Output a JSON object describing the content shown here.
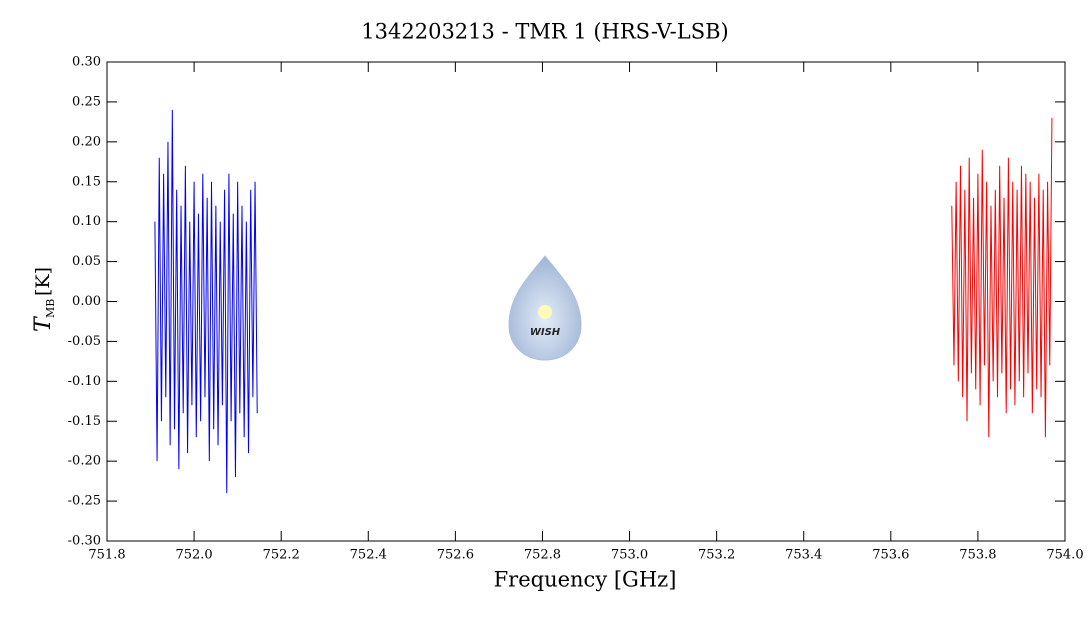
{
  "chart_data": {
    "type": "line",
    "title": "1342203213 - TMR 1 (HRS-V-LSB)",
    "x_label": "Frequency [GHz]",
    "y_label": {
      "main": "T",
      "sub": "MB",
      "unit": "[K]"
    },
    "watermark": "WISH",
    "xlim": [
      751.8,
      754.0
    ],
    "ylim": [
      -0.3,
      0.3
    ],
    "xticks": [
      751.8,
      {
        "value": 752,
        "label": "752.0"
      },
      752.2,
      752.4,
      752.6,
      752.8,
      {
        "value": 753,
        "label": "753.0"
      },
      753.2,
      753.4,
      753.6,
      753.8,
      {
        "value": 754,
        "label": "754.0"
      }
    ],
    "yticks": [
      {
        "value": -0.3,
        "label": "-0.30"
      },
      -0.25,
      {
        "value": -0.2,
        "label": "-0.20"
      },
      -0.15,
      {
        "value": -0.1,
        "label": "-0.10"
      },
      -0.05,
      {
        "value": 0,
        "label": "0.00"
      },
      0.05,
      {
        "value": 0.1,
        "label": "0.10"
      },
      0.15,
      {
        "value": 0.2,
        "label": "0.20"
      },
      0.25,
      {
        "value": 0.3,
        "label": "0.30"
      }
    ],
    "series": [
      {
        "color": "#0000ff",
        "x": [
          751.91,
          751.915,
          751.92,
          751.925,
          751.93,
          751.935,
          751.94,
          751.945,
          751.95,
          751.955,
          751.96,
          751.965,
          751.97,
          751.975,
          751.98,
          751.985,
          751.99,
          751.995,
          752.0,
          752.005,
          752.01,
          752.015,
          752.02,
          752.025,
          752.03,
          752.035,
          752.04,
          752.045,
          752.05,
          752.055,
          752.06,
          752.065,
          752.07,
          752.075,
          752.08,
          752.085,
          752.09,
          752.095,
          752.1,
          752.105,
          752.11,
          752.115,
          752.12,
          752.125,
          752.13,
          752.135,
          752.14,
          752.145
        ],
        "values": [
          0.1,
          -0.2,
          0.18,
          -0.15,
          0.16,
          -0.12,
          0.2,
          -0.18,
          0.24,
          -0.16,
          0.14,
          -0.21,
          0.12,
          -0.14,
          0.17,
          -0.19,
          0.1,
          -0.13,
          0.15,
          -0.17,
          0.11,
          -0.15,
          0.16,
          -0.12,
          0.13,
          -0.2,
          0.15,
          -0.16,
          0.12,
          -0.18,
          0.1,
          -0.13,
          0.14,
          -0.24,
          0.16,
          -0.15,
          0.11,
          -0.22,
          0.15,
          -0.14,
          0.12,
          -0.17,
          0.1,
          -0.19,
          0.14,
          -0.12,
          0.15,
          -0.14
        ]
      },
      {
        "color": "#ff0000",
        "x": [
          753.74,
          753.745,
          753.75,
          753.755,
          753.76,
          753.765,
          753.77,
          753.775,
          753.78,
          753.785,
          753.79,
          753.795,
          753.8,
          753.805,
          753.81,
          753.815,
          753.82,
          753.825,
          753.83,
          753.835,
          753.84,
          753.845,
          753.85,
          753.855,
          753.86,
          753.865,
          753.87,
          753.875,
          753.88,
          753.885,
          753.89,
          753.895,
          753.9,
          753.905,
          753.91,
          753.915,
          753.92,
          753.925,
          753.93,
          753.935,
          753.94,
          753.945,
          753.95,
          753.955,
          753.96,
          753.965,
          753.97
        ],
        "values": [
          0.12,
          -0.08,
          0.15,
          -0.1,
          0.17,
          -0.12,
          0.14,
          -0.15,
          0.18,
          -0.09,
          0.13,
          -0.11,
          0.16,
          -0.13,
          0.19,
          -0.08,
          0.15,
          -0.17,
          0.12,
          -0.1,
          0.14,
          -0.12,
          0.17,
          -0.09,
          0.13,
          -0.14,
          0.18,
          -0.11,
          0.15,
          -0.13,
          0.14,
          -0.1,
          0.17,
          -0.12,
          0.16,
          -0.09,
          0.15,
          -0.14,
          0.13,
          -0.11,
          0.16,
          -0.12,
          0.14,
          -0.17,
          0.15,
          -0.08,
          0.23
        ]
      }
    ]
  }
}
